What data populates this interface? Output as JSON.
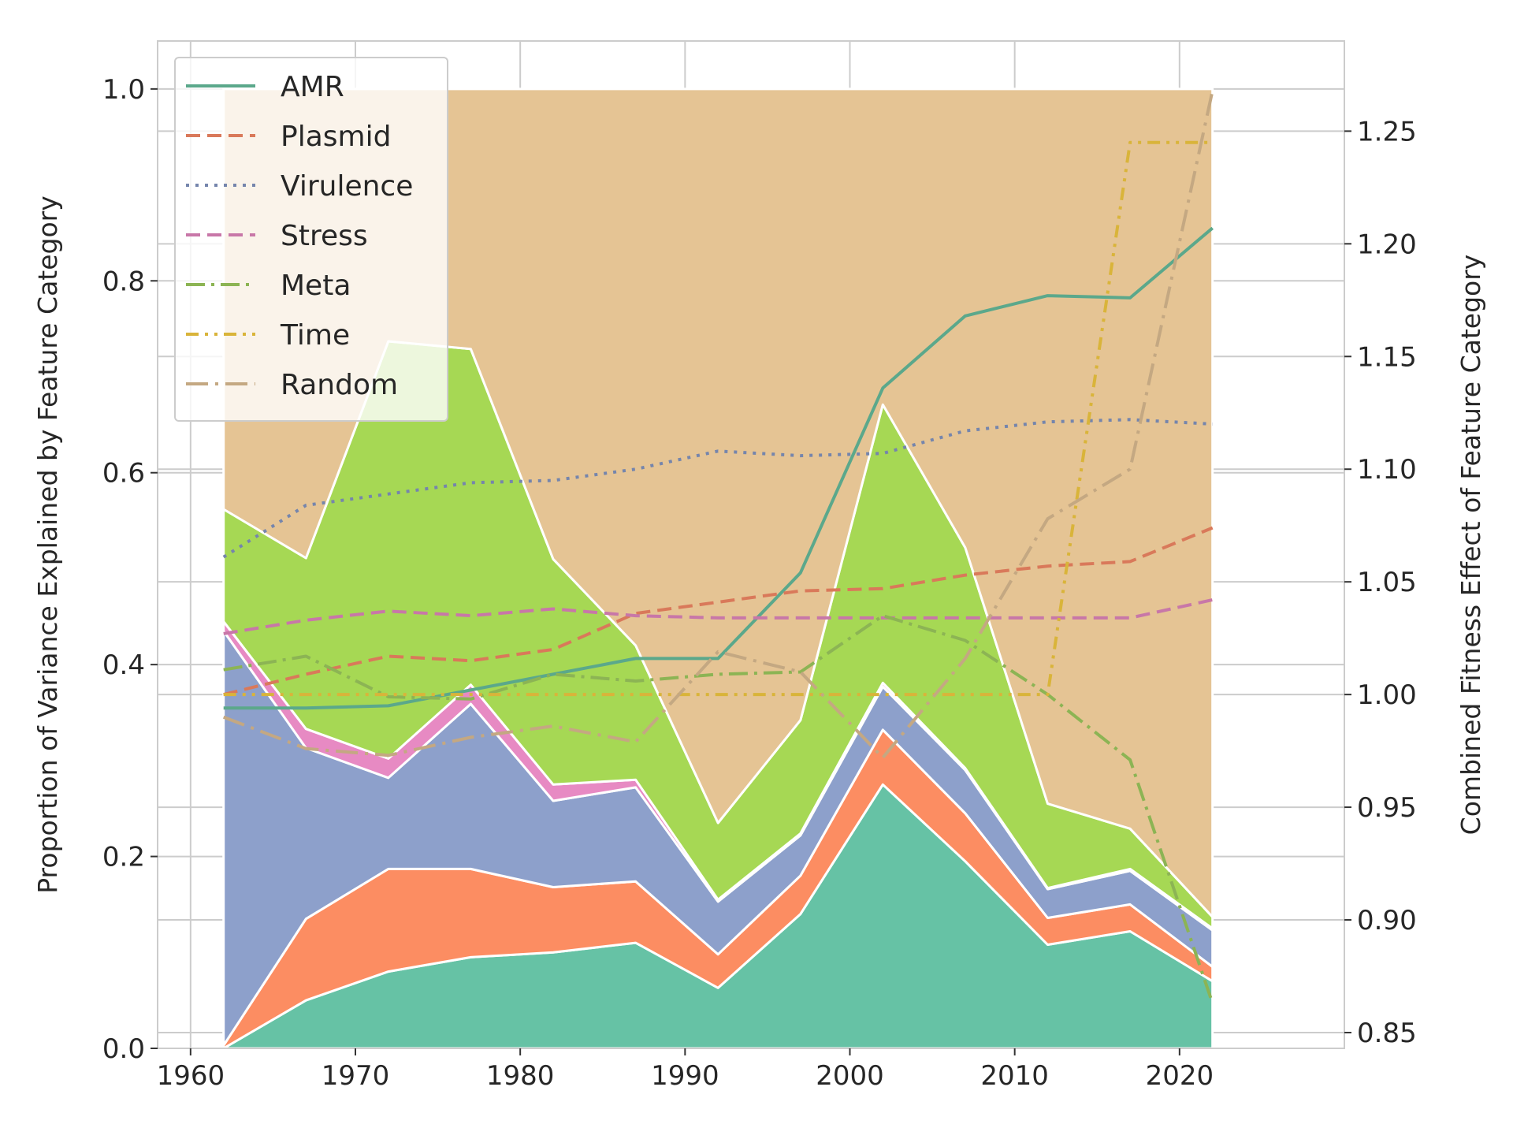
{
  "chart_data": {
    "type": "area",
    "title": "",
    "xlabel": "",
    "ylabel_left": "Proportion of Variance Explained by Feature Category",
    "ylabel_right": "Combined Fitness Effect of Feature Category",
    "x": [
      1962,
      1967,
      1972,
      1977,
      1982,
      1987,
      1992,
      1997,
      2002,
      2007,
      2012,
      2017,
      2022
    ],
    "xlim": [
      1958,
      2030
    ],
    "ylim_left": [
      0,
      1.05
    ],
    "ylim_right": [
      0.843,
      1.29
    ],
    "xticks": [
      "1960",
      "1970",
      "1980",
      "1990",
      "2000",
      "2010",
      "2020"
    ],
    "yticks_left": [
      "0.0",
      "0.2",
      "0.4",
      "0.6",
      "0.8",
      "1.0"
    ],
    "yticks_right": [
      "0.85",
      "0.90",
      "0.95",
      "1.00",
      "1.05",
      "1.10",
      "1.15",
      "1.20",
      "1.25"
    ],
    "grid": true,
    "legend_position": "top-left",
    "stacked_area": {
      "axis": "left",
      "series": [
        {
          "key": "amr",
          "color": "#66c2a5",
          "values": [
            0.0,
            0.05,
            0.08,
            0.095,
            0.1,
            0.11,
            0.063,
            0.14,
            0.275,
            0.195,
            0.108,
            0.122,
            0.07
          ]
        },
        {
          "key": "plasmid",
          "color": "#fc8d62",
          "values": [
            0.003,
            0.085,
            0.107,
            0.092,
            0.068,
            0.064,
            0.035,
            0.04,
            0.057,
            0.05,
            0.028,
            0.028,
            0.015
          ]
        },
        {
          "key": "virulence",
          "color": "#8da0cb",
          "values": [
            0.432,
            0.178,
            0.095,
            0.172,
            0.09,
            0.098,
            0.055,
            0.042,
            0.045,
            0.045,
            0.03,
            0.035,
            0.038
          ]
        },
        {
          "key": "stress",
          "color": "#e78ac3",
          "values": [
            0.01,
            0.02,
            0.02,
            0.02,
            0.017,
            0.008,
            0.002,
            0.002,
            0.004,
            0.002,
            0.001,
            0.002,
            0.002
          ]
        },
        {
          "key": "meta",
          "color": "#a6d854",
          "values": [
            0.117,
            0.178,
            0.435,
            0.35,
            0.235,
            0.14,
            0.08,
            0.118,
            0.29,
            0.23,
            0.088,
            0.042,
            0.012
          ]
        },
        {
          "key": "remaining",
          "color": "#e5c494",
          "values": [
            0.438,
            0.489,
            0.263,
            0.271,
            0.49,
            0.58,
            0.765,
            0.658,
            0.329,
            0.478,
            0.745,
            0.771,
            0.863
          ]
        }
      ]
    },
    "lines": {
      "axis": "right",
      "series": [
        {
          "name": "AMR",
          "color": "#5ba88b",
          "dash": "",
          "values": [
            0.994,
            0.994,
            0.995,
            1.002,
            1.009,
            1.016,
            1.016,
            1.054,
            1.136,
            1.168,
            1.177,
            1.176,
            1.207
          ]
        },
        {
          "name": "Plasmid",
          "color": "#d9795a",
          "dash": "18,9",
          "values": [
            1.0,
            1.009,
            1.017,
            1.015,
            1.02,
            1.036,
            1.041,
            1.046,
            1.047,
            1.053,
            1.057,
            1.059,
            1.074
          ]
        },
        {
          "name": "Virulence",
          "color": "#7585ac",
          "dash": "4,8",
          "values": [
            1.061,
            1.084,
            1.089,
            1.094,
            1.095,
            1.1,
            1.108,
            1.106,
            1.107,
            1.117,
            1.121,
            1.122,
            1.12
          ]
        },
        {
          "name": "Stress",
          "color": "#c877a8",
          "dash": "18,9",
          "values": [
            1.027,
            1.033,
            1.037,
            1.035,
            1.038,
            1.035,
            1.034,
            1.034,
            1.034,
            1.034,
            1.034,
            1.034,
            1.042
          ]
        },
        {
          "name": "Meta",
          "color": "#8cb454",
          "dash": "24,8,4,8",
          "values": [
            1.011,
            1.017,
            0.999,
            0.998,
            1.009,
            1.006,
            1.009,
            1.01,
            1.035,
            1.024,
            1.0,
            0.971,
            0.863
          ]
        },
        {
          "name": "Time",
          "color": "#d9b43a",
          "dash": "16,8,4,8,4,8",
          "values": [
            1.0,
            1.0,
            1.0,
            1.0,
            1.0,
            1.0,
            1.0,
            1.0,
            1.0,
            1.0,
            1.0,
            1.245,
            1.245
          ]
        },
        {
          "name": "Random",
          "color": "#c4a882",
          "dash": "28,9,4,9",
          "values": [
            0.99,
            0.976,
            0.973,
            0.981,
            0.986,
            0.979,
            1.019,
            1.01,
            0.972,
            1.016,
            1.078,
            1.1,
            1.268
          ]
        }
      ]
    }
  }
}
